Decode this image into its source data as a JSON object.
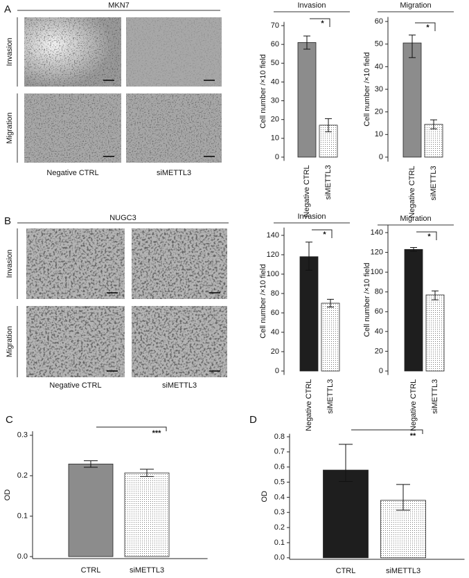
{
  "figure": {
    "panels": [
      "A",
      "B",
      "C",
      "D"
    ],
    "micrographs": [
      {
        "cell_line": "MKN7",
        "rows": [
          "Invasion",
          "Migration"
        ],
        "columns": [
          "Negative CTRL",
          "siMETTL3"
        ]
      },
      {
        "cell_line": "NUGC3",
        "rows": [
          "Invasion",
          "Migration"
        ],
        "columns": [
          "Negative CTRL",
          "siMETTL3"
        ]
      }
    ]
  },
  "chart_data": [
    {
      "type": "bar",
      "title": "Invasion",
      "y_label": "Cell number /×10 field",
      "categories": [
        "Negative CTRL",
        "siMETTL3"
      ],
      "values": [
        61,
        17
      ],
      "err_minus": [
        3.5,
        3.5
      ],
      "err_plus": [
        3.5,
        3.5
      ],
      "colors": [
        "#8c8c8c",
        "#ffffff"
      ],
      "fills": [
        "solid",
        "dotted"
      ],
      "ylim": [
        -2,
        72
      ],
      "yticks": [
        0,
        10,
        20,
        30,
        40,
        50,
        60,
        70
      ],
      "significance": "*"
    },
    {
      "type": "bar",
      "title": "Migration",
      "y_label": "Cell number /×10 field",
      "categories": [
        "Negative CTRL",
        "siMETTL3"
      ],
      "values": [
        50.5,
        14.5
      ],
      "err_minus": [
        6.5,
        2
      ],
      "err_plus": [
        3.5,
        2
      ],
      "colors": [
        "#8c8c8c",
        "#ffffff"
      ],
      "fills": [
        "solid",
        "dotted"
      ],
      "ylim": [
        -2,
        62
      ],
      "yticks": [
        0,
        10,
        20,
        30,
        40,
        50,
        60
      ],
      "significance": "*"
    },
    {
      "type": "bar",
      "title": "Invasion",
      "y_label": "Cell number /×10 field",
      "categories": [
        "Negative CTRL",
        "siMETTL3"
      ],
      "values": [
        118,
        70
      ],
      "err_minus": [
        14,
        4
      ],
      "err_plus": [
        15,
        4
      ],
      "colors": [
        "#1e1e1e",
        "#ffffff"
      ],
      "fills": [
        "solid",
        "dotted"
      ],
      "ylim": [
        -4,
        148
      ],
      "yticks": [
        0,
        20,
        40,
        60,
        80,
        100,
        120,
        140
      ],
      "significance": "*"
    },
    {
      "type": "bar",
      "title": "Migration",
      "y_label": "Cell number /×10 field",
      "categories": [
        "Negative CTRL",
        "siMETTL3"
      ],
      "values": [
        123,
        77
      ],
      "err_minus": [
        2,
        5
      ],
      "err_plus": [
        2,
        4
      ],
      "colors": [
        "#1e1e1e",
        "#ffffff"
      ],
      "fills": [
        "solid",
        "dotted"
      ],
      "ylim": [
        -4,
        148
      ],
      "yticks": [
        0,
        20,
        40,
        60,
        80,
        100,
        120,
        140
      ],
      "significance": "*"
    },
    {
      "type": "bar",
      "y_label": "OD",
      "categories": [
        "CTRL",
        "siMETTL3"
      ],
      "values": [
        0.229,
        0.207
      ],
      "err_minus": [
        0.008,
        0.009
      ],
      "err_plus": [
        0.008,
        0.009
      ],
      "colors": [
        "#8c8c8c",
        "#ffffff"
      ],
      "fills": [
        "solid",
        "dotted"
      ],
      "ylim": [
        -0.005,
        0.31
      ],
      "yticks": [
        {
          "value": 0,
          "label": "0.0"
        },
        0.1,
        0.2,
        0.3
      ],
      "significance": "***"
    },
    {
      "type": "bar",
      "y_label": "OD",
      "categories": [
        "CTRL",
        "siMETTL3"
      ],
      "values": [
        0.58,
        0.38
      ],
      "err_minus": [
        0.075,
        0.065
      ],
      "err_plus": [
        0.17,
        0.105
      ],
      "colors": [
        "#1e1e1e",
        "#ffffff"
      ],
      "fills": [
        "solid",
        "dotted"
      ],
      "ylim": [
        -0.01,
        0.82
      ],
      "yticks": [
        {
          "value": 0,
          "label": "0.0"
        },
        0.1,
        0.2,
        0.3,
        0.4,
        0.5,
        0.6,
        0.7,
        0.8
      ],
      "significance": "**"
    }
  ]
}
